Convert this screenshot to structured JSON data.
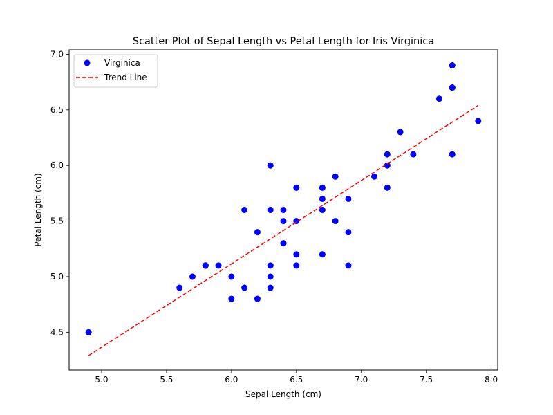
{
  "chart_data": {
    "type": "scatter",
    "title": "Scatter Plot of Sepal Length vs Petal Length for Iris Virginica",
    "xlabel": "Sepal Length (cm)",
    "ylabel": "Petal Length (cm)",
    "xlim": [
      4.75,
      8.05
    ],
    "ylim": [
      4.16,
      7.04
    ],
    "xticks": [
      "5.0",
      "5.5",
      "6.0",
      "6.5",
      "7.0",
      "7.5",
      "8.0"
    ],
    "yticks": [
      "4.5",
      "5.0",
      "5.5",
      "6.0",
      "6.5",
      "7.0"
    ],
    "grid": false,
    "legend_position": "top-left",
    "series": [
      {
        "name": "Virginica",
        "kind": "scatter",
        "color": "#0000ff",
        "points": [
          [
            4.9,
            4.5
          ],
          [
            5.6,
            4.9
          ],
          [
            5.7,
            5.0
          ],
          [
            5.8,
            5.1
          ],
          [
            5.8,
            5.1
          ],
          [
            5.8,
            5.1
          ],
          [
            5.9,
            5.1
          ],
          [
            6.0,
            4.8
          ],
          [
            6.0,
            5.0
          ],
          [
            6.1,
            5.6
          ],
          [
            6.1,
            4.9
          ],
          [
            6.2,
            5.4
          ],
          [
            6.2,
            4.8
          ],
          [
            6.3,
            6.0
          ],
          [
            6.3,
            5.6
          ],
          [
            6.3,
            5.1
          ],
          [
            6.3,
            5.0
          ],
          [
            6.3,
            4.9
          ],
          [
            6.3,
            5.6
          ],
          [
            6.4,
            5.6
          ],
          [
            6.4,
            5.5
          ],
          [
            6.4,
            5.3
          ],
          [
            6.4,
            5.3
          ],
          [
            6.5,
            5.8
          ],
          [
            6.5,
            5.5
          ],
          [
            6.5,
            5.2
          ],
          [
            6.5,
            5.1
          ],
          [
            6.7,
            5.8
          ],
          [
            6.7,
            5.7
          ],
          [
            6.7,
            5.6
          ],
          [
            6.7,
            5.2
          ],
          [
            6.8,
            5.9
          ],
          [
            6.8,
            5.5
          ],
          [
            6.9,
            5.7
          ],
          [
            6.9,
            5.4
          ],
          [
            6.9,
            5.1
          ],
          [
            7.1,
            5.9
          ],
          [
            7.2,
            6.1
          ],
          [
            7.2,
            6.0
          ],
          [
            7.2,
            5.8
          ],
          [
            7.3,
            6.3
          ],
          [
            7.4,
            6.1
          ],
          [
            7.6,
            6.6
          ],
          [
            7.7,
            6.9
          ],
          [
            7.7,
            6.7
          ],
          [
            7.7,
            6.7
          ],
          [
            7.7,
            6.1
          ],
          [
            7.9,
            6.4
          ]
        ]
      },
      {
        "name": "Trend Line",
        "kind": "line",
        "style": "dashed",
        "color": "#ff0000",
        "x": [
          4.9,
          7.9
        ],
        "y": [
          4.29,
          6.54
        ]
      }
    ]
  }
}
